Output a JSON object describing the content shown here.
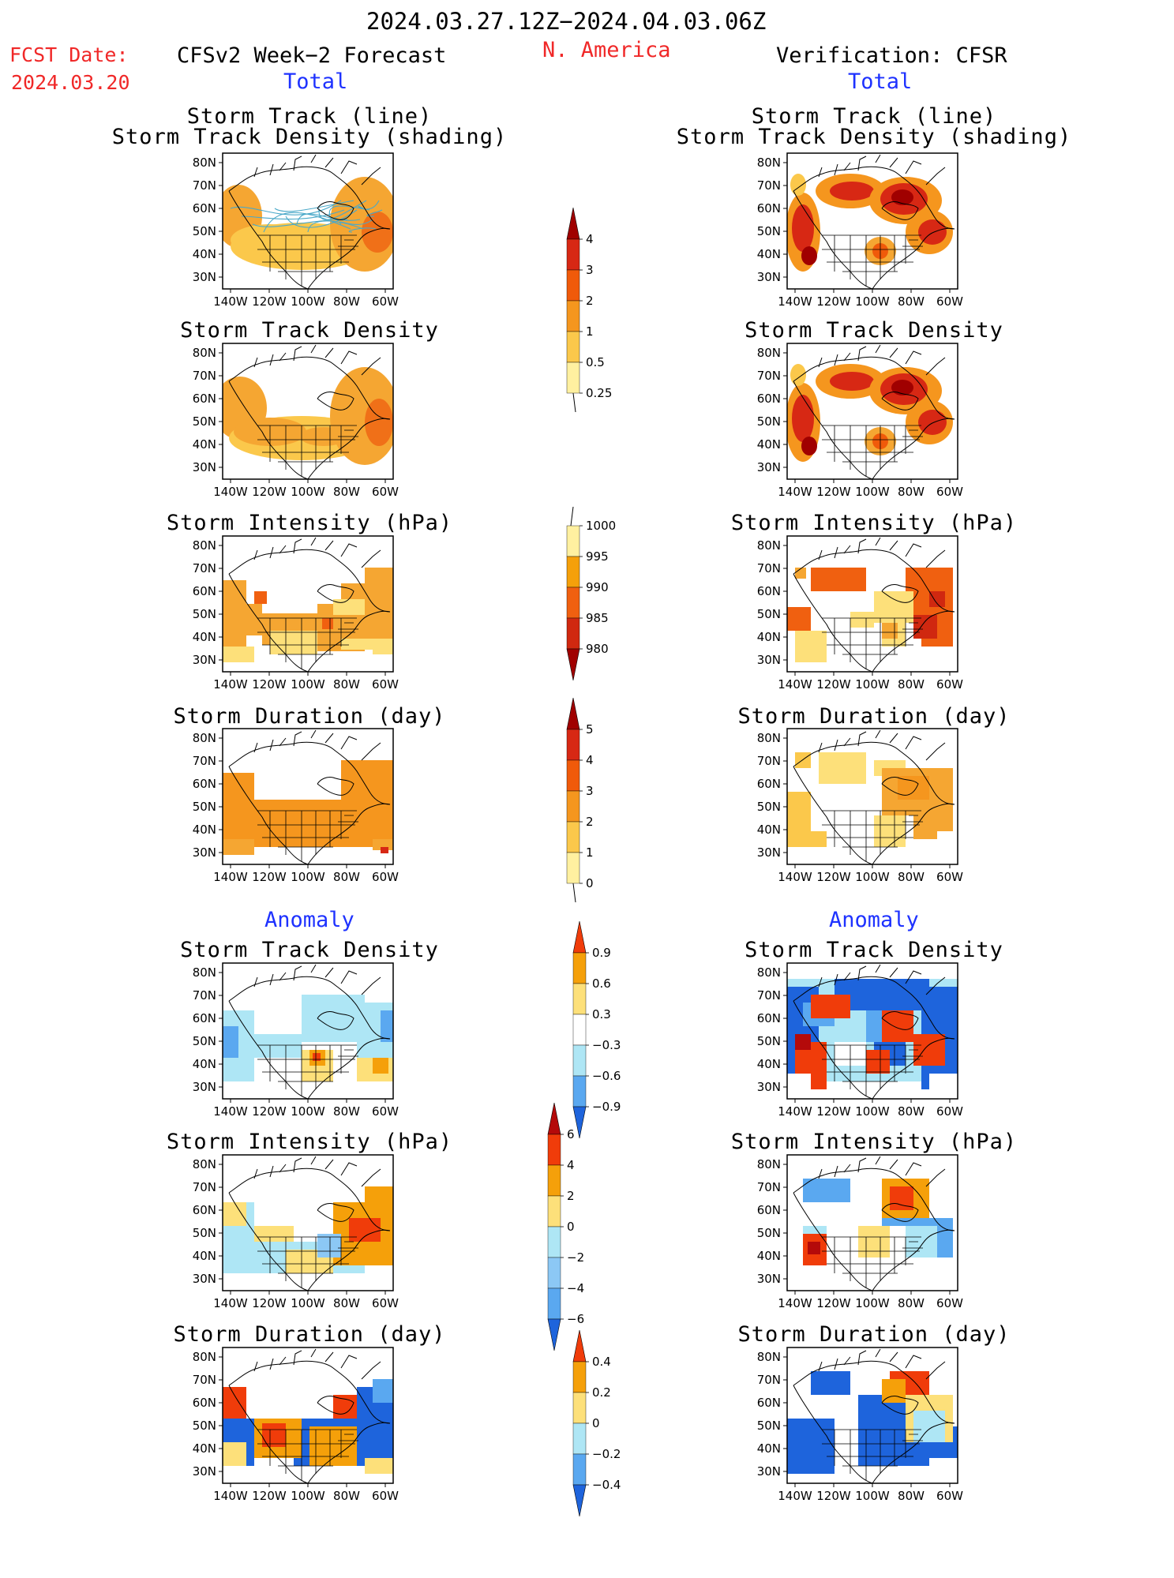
{
  "header": {
    "date_range": "2024.03.27.12Z−2024.04.03.06Z",
    "region": "N. America",
    "fcst_label": "FCST Date:",
    "fcst_date": "2024.03.20",
    "left_title": "CFSv2 Week−2 Forecast",
    "right_title": "Verification: CFSR",
    "total_left": "Total",
    "total_right": "Total",
    "anomaly_left": "Anomaly",
    "anomaly_right": "Anomaly"
  },
  "panel_titles": {
    "track_line": "Storm Track (line)",
    "track_density_shading": "Storm Track Density (shading)",
    "track_density": "Storm Track Density",
    "intensity": "Storm Intensity (hPa)",
    "duration": "Storm Duration (day)"
  },
  "axes": {
    "lat_labels": [
      "80N",
      "70N",
      "60N",
      "50N",
      "40N",
      "30N"
    ],
    "lon_labels": [
      "140W",
      "120W",
      "100W",
      "80W",
      "60W"
    ]
  },
  "colorbars": {
    "density_total": {
      "labels": [
        "4",
        "3",
        "2",
        "1",
        "0.5",
        "0.25"
      ],
      "colors": [
        "#a00000",
        "#d72814",
        "#f05a0a",
        "#f5961e",
        "#fbc84b",
        "#fff0a0"
      ]
    },
    "intensity_total": {
      "labels": [
        "1000",
        "995",
        "990",
        "985",
        "980"
      ],
      "colors": [
        "#fff0a0",
        "#f5a00a",
        "#f06010",
        "#d02810",
        "#a00000"
      ]
    },
    "duration_total": {
      "labels": [
        "5",
        "4",
        "3",
        "2",
        "1",
        "0"
      ],
      "colors": [
        "#a00000",
        "#d72814",
        "#f05a0a",
        "#f5961e",
        "#fbc84b",
        "#fff0a0"
      ]
    },
    "density_anom": {
      "labels": [
        "0.9",
        "0.6",
        "0.3",
        "−0.3",
        "−0.6",
        "−0.9"
      ],
      "colors": [
        "#f03c0a",
        "#f5a00a",
        "#fde07a",
        "#ffffff",
        "#aee6f5",
        "#5aa8f0",
        "#1e64dc"
      ]
    },
    "intensity_anom": {
      "labels": [
        "6",
        "4",
        "2",
        "0",
        "−2",
        "−4",
        "−6"
      ],
      "colors": [
        "#b40a0a",
        "#f03c0a",
        "#f5a00a",
        "#fde07a",
        "#aee6f5",
        "#8cc8f5",
        "#5aa8f0",
        "#1e64dc"
      ]
    },
    "duration_anom": {
      "labels": [
        "0.4",
        "0.2",
        "0",
        "−0.2",
        "−0.4"
      ],
      "colors": [
        "#f03c0a",
        "#f5a00a",
        "#fde07a",
        "#aee6f5",
        "#5aa8f0",
        "#1e64dc"
      ]
    }
  }
}
